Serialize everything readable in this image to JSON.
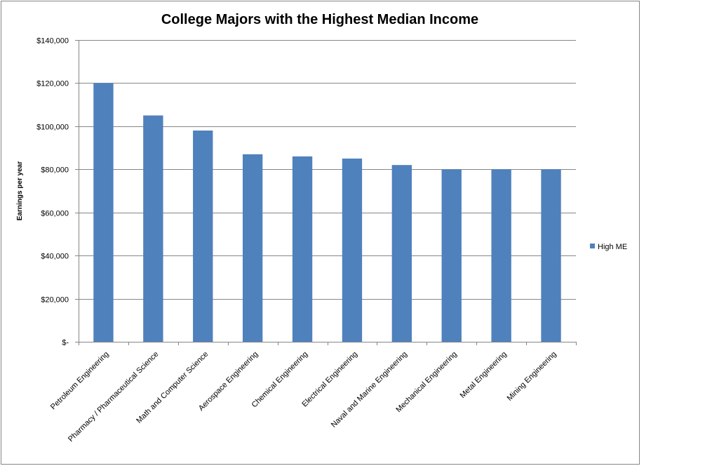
{
  "chart_data": {
    "type": "bar",
    "title": "College Majors with the Highest Median Income",
    "xlabel": "",
    "ylabel": "Earnings per year",
    "categories": [
      "Petroleum Engineering",
      "Pharmacy / Pharmaceutical Science",
      "Math and Computer Science",
      "Aerospace Engineering",
      "Chemical Engineering",
      "Electrical Engineering",
      "Naval and Marine Engineering",
      "Mechanical Engineering",
      "Metal Engineering",
      "Mining Engineering"
    ],
    "series": [
      {
        "name": "High ME",
        "values": [
          120000,
          105000,
          98000,
          87000,
          86000,
          85000,
          82000,
          80000,
          80000,
          80000
        ]
      }
    ],
    "ylim": [
      0,
      140000
    ],
    "yticks": [
      0,
      20000,
      40000,
      60000,
      80000,
      100000,
      120000,
      140000
    ],
    "ytick_labels": [
      "$-",
      "$20,000",
      "$40,000",
      "$60,000",
      "$80,000",
      "$100,000",
      "$120,000",
      "$140,000"
    ],
    "grid": true,
    "legend_position": "right",
    "colors": {
      "bar": "#4F81BD",
      "grid": "#868686",
      "border": "#868686"
    }
  }
}
